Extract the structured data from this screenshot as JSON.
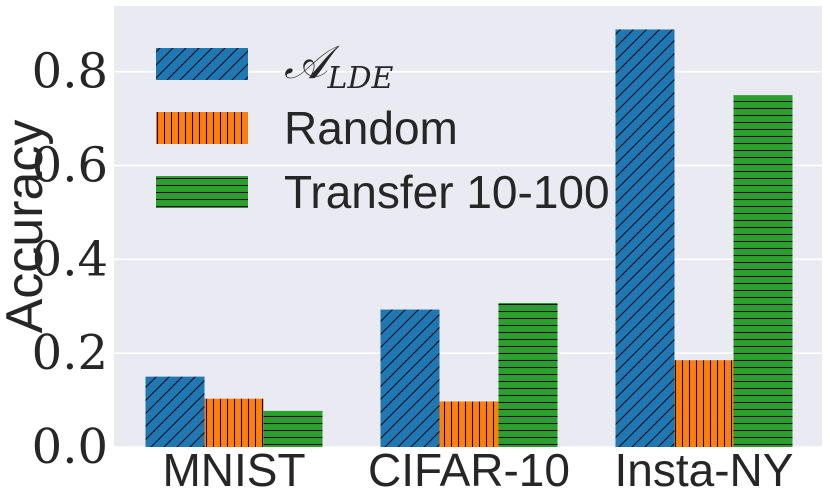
{
  "chart_data": {
    "type": "bar",
    "categories": [
      "MNIST",
      "CIFAR-10",
      "Insta-NY"
    ],
    "series": [
      {
        "name": "𝒜_LDE",
        "name_main": "𝒜",
        "name_sub": "LDE",
        "values": [
          0.15,
          0.293,
          0.89
        ],
        "color": "#1f77b4",
        "hatch": "diagonal"
      },
      {
        "name": "Random",
        "values": [
          0.103,
          0.097,
          0.185
        ],
        "color": "#ff7f0e",
        "hatch": "vertical"
      },
      {
        "name": "Transfer 10-100",
        "values": [
          0.077,
          0.307,
          0.75
        ],
        "color": "#2ca02c",
        "hatch": "horizontal"
      }
    ],
    "ylabel": "Accuracy",
    "xlabel": "",
    "ylim": [
      0,
      0.94
    ],
    "yticks": [
      0.0,
      0.2,
      0.4,
      0.6,
      0.8
    ],
    "ytick_labels": [
      "0.0",
      "0.2",
      "0.4",
      "0.6",
      "0.8"
    ],
    "grid": true,
    "legend_position": "top-left",
    "background": "#eaeaf2"
  }
}
